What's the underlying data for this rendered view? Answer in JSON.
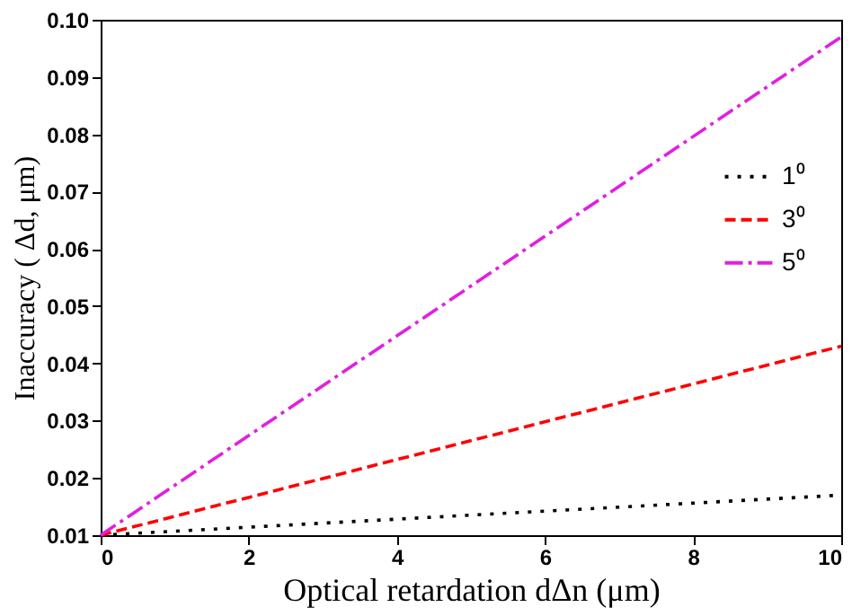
{
  "chart_data": {
    "type": "line",
    "xlabel": "Optical retardation dΔn  (μm)",
    "ylabel": "Inaccuracy ( Δd,  μm)",
    "x": [
      0,
      10
    ],
    "xlim": [
      0,
      10
    ],
    "xticks": [
      0,
      2,
      4,
      6,
      8,
      10
    ],
    "ylim": [
      0.01,
      0.1
    ],
    "yticks": [
      0.01,
      0.02,
      0.03,
      0.04,
      0.05,
      0.06,
      0.07,
      0.08,
      0.09,
      {
        "value": 0.1,
        "label": "0.10"
      }
    ],
    "series": [
      {
        "name": "1⁰",
        "color": "#000000",
        "values": [
          0.01,
          0.017
        ],
        "line_style": "dotted"
      },
      {
        "name": "3⁰",
        "color": "#ff0000",
        "values": [
          0.01,
          0.043
        ],
        "line_style": "dashed"
      },
      {
        "name": "5⁰",
        "color": "#e020e0",
        "values": [
          0.01,
          0.097
        ],
        "line_style": "dashdot"
      }
    ],
    "legend": "right",
    "grid": false
  }
}
